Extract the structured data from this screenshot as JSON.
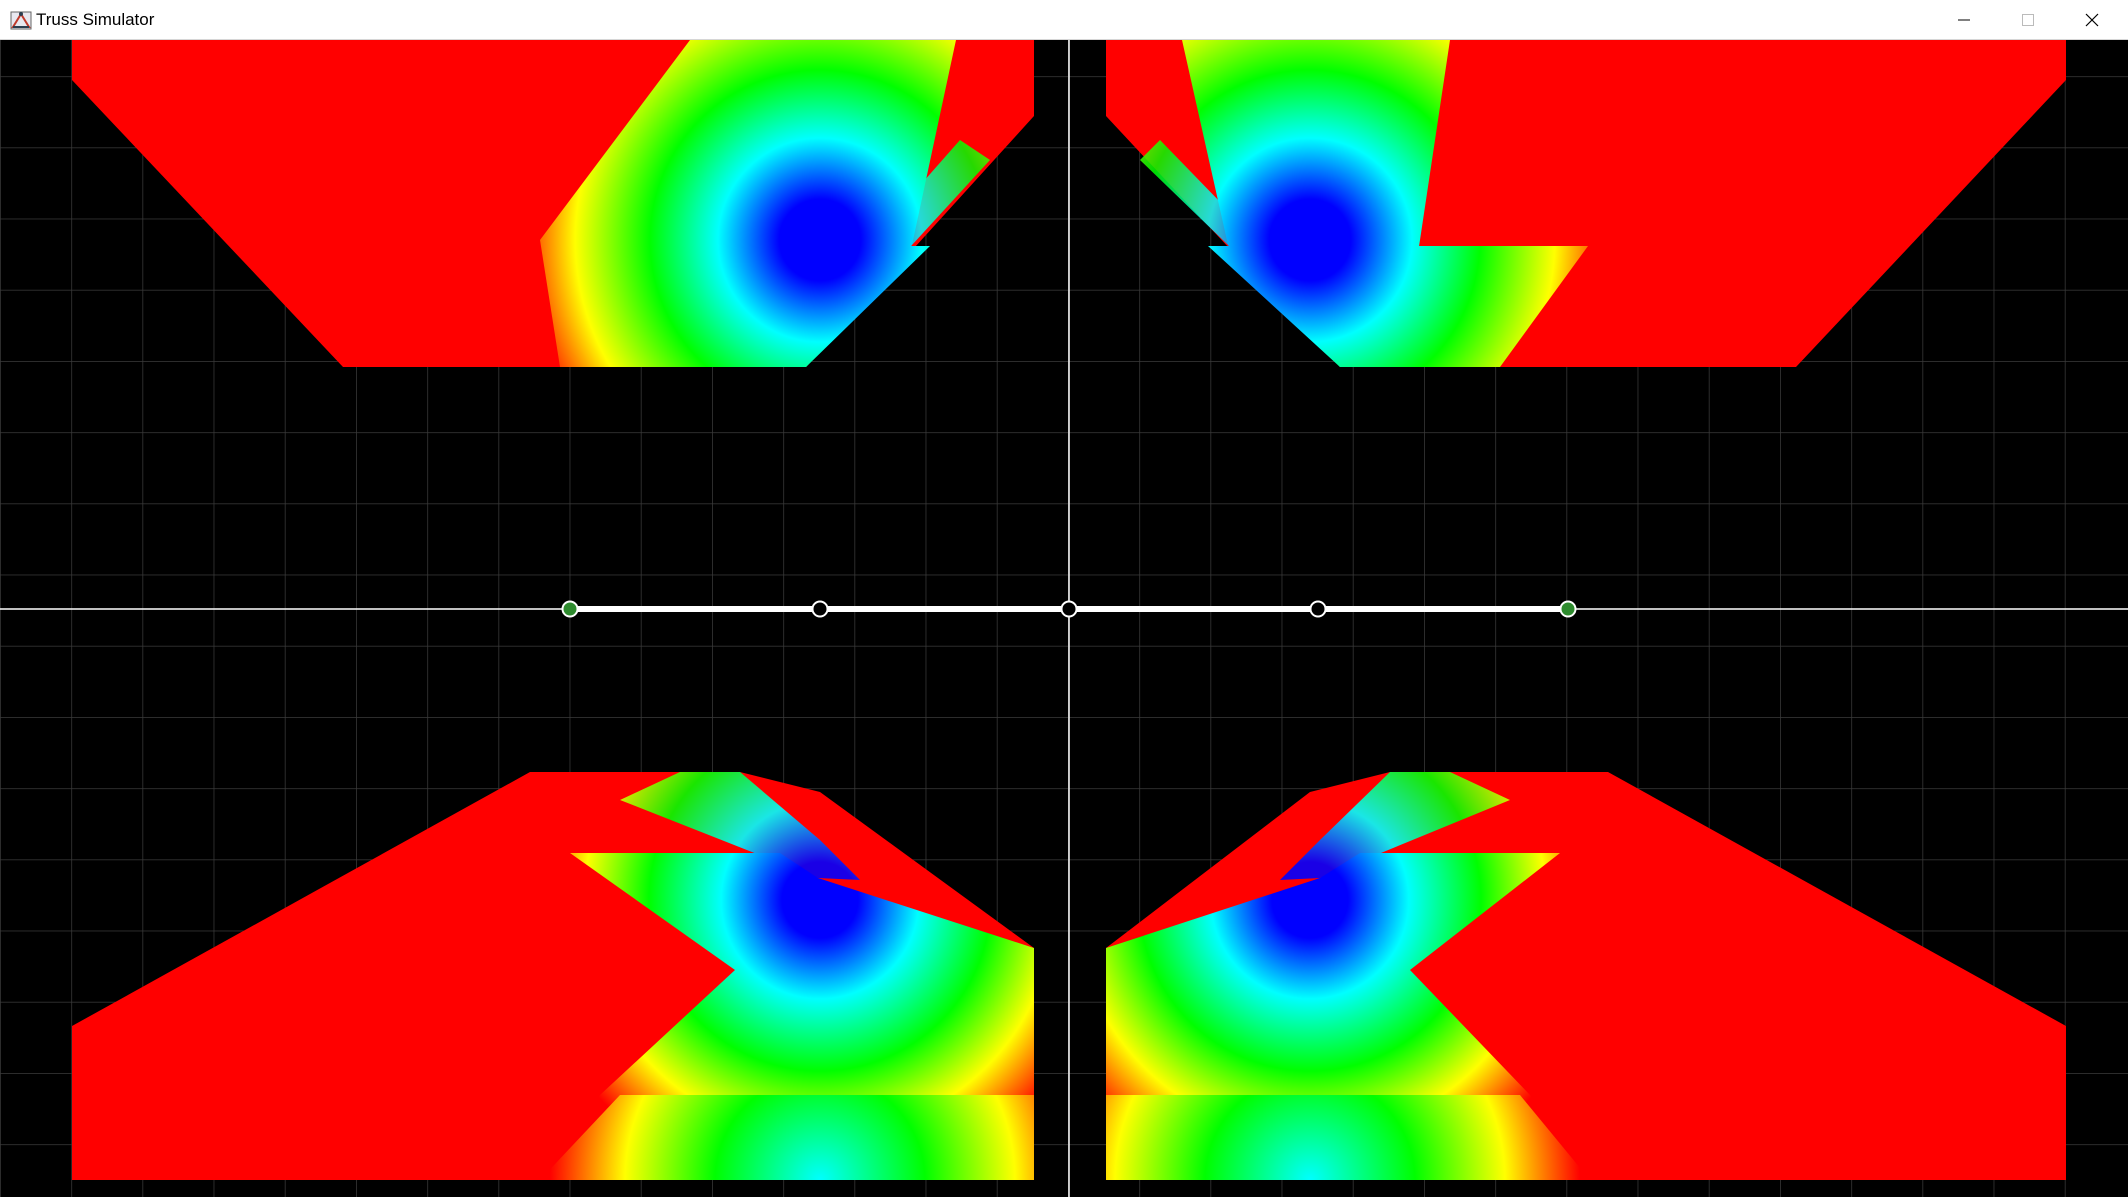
{
  "window": {
    "title": "Truss Simulator",
    "app_icon": "truss-app-icon",
    "controls": [
      "minimize-icon",
      "maximize-icon",
      "close-icon"
    ]
  },
  "canvas": {
    "background": "#000000",
    "grid_color": "#3a3a3a",
    "axis_color": "#ffffff",
    "stress_colormap": [
      "#ff0000",
      "#ffff00",
      "#00ff00",
      "#00ffff",
      "#0000ff"
    ],
    "truss": {
      "member_color": "#ffffff",
      "nodes": [
        {
          "id": "left-support",
          "type": "support",
          "color": "#2e8b2e"
        },
        {
          "id": "node-2",
          "type": "joint",
          "color": "#ffffff"
        },
        {
          "id": "node-3",
          "type": "joint",
          "color": "#ffffff"
        },
        {
          "id": "node-4",
          "type": "joint",
          "color": "#ffffff"
        },
        {
          "id": "right-support",
          "type": "support",
          "color": "#2e8b2e"
        }
      ]
    }
  }
}
